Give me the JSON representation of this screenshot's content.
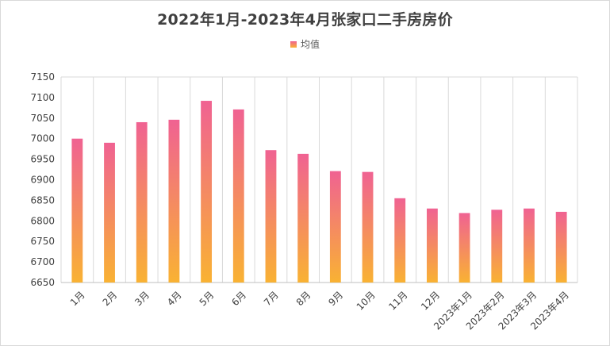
{
  "chart_data": {
    "type": "bar",
    "title": "2022年1月-2023年4月张家口二手房房价",
    "legend": {
      "position": "top",
      "entries": [
        "均值"
      ]
    },
    "categories": [
      "1月",
      "2月",
      "3月",
      "4月",
      "5月",
      "6月",
      "7月",
      "8月",
      "9月",
      "10月",
      "11月",
      "12月",
      "2023年1月",
      "2023年2月",
      "2023年3月",
      "2023年4月"
    ],
    "series": [
      {
        "name": "均值",
        "values": [
          7000,
          6990,
          7040,
          7046,
          7092,
          7071,
          6972,
          6963,
          6921,
          6919,
          6855,
          6830,
          6819,
          6827,
          6830,
          6822
        ]
      }
    ],
    "ylim": [
      6650,
      7150
    ],
    "yticks": [
      6650,
      6700,
      6750,
      6800,
      6850,
      6900,
      6950,
      7000,
      7050,
      7100,
      7150
    ],
    "grid": "vertical",
    "colors": {
      "bar_top": "#f06292",
      "bar_bottom": "#f9b233",
      "text": "#404040",
      "grid": "#d9d9d9"
    }
  }
}
